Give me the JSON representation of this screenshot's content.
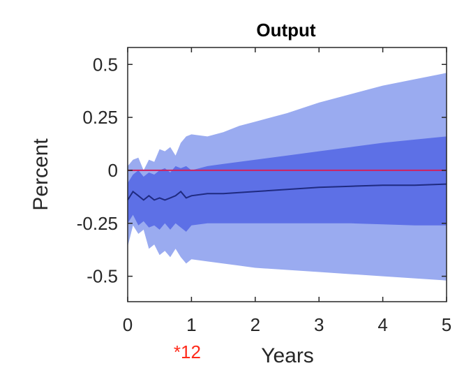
{
  "chart_data": {
    "type": "area",
    "title": "Output",
    "xlabel": "Years",
    "ylabel": "Percent",
    "xlim": [
      0,
      5
    ],
    "ylim": [
      -0.62,
      0.58
    ],
    "x_ticks": [
      "0",
      "1",
      "2",
      "3",
      "4",
      "5"
    ],
    "y_ticks": [
      "0.5",
      "0.25",
      "0",
      "-0.25",
      "-0.5"
    ],
    "x_tick_values": [
      0,
      1,
      2,
      3,
      4,
      5
    ],
    "y_tick_values": [
      0.5,
      0.25,
      0,
      -0.25,
      -0.5
    ],
    "grid": false,
    "annotation": {
      "text": "*12",
      "x": 1
    },
    "reference_line": {
      "y": 0
    },
    "x": [
      0,
      0.083,
      0.167,
      0.25,
      0.333,
      0.417,
      0.5,
      0.583,
      0.667,
      0.75,
      0.833,
      0.917,
      1.0,
      1.25,
      1.5,
      1.75,
      2.0,
      2.5,
      3.0,
      3.5,
      4.0,
      4.5,
      5.0
    ],
    "series": [
      {
        "band": "outer",
        "upper": [
          0.02,
          0.05,
          0.06,
          0.0,
          0.05,
          0.04,
          0.1,
          0.09,
          0.11,
          0.07,
          0.13,
          0.16,
          0.17,
          0.16,
          0.18,
          0.21,
          0.23,
          0.27,
          0.32,
          0.36,
          0.4,
          0.43,
          0.46
        ],
        "lower": [
          -0.36,
          -0.26,
          -0.3,
          -0.28,
          -0.37,
          -0.35,
          -0.4,
          -0.38,
          -0.41,
          -0.37,
          -0.41,
          -0.44,
          -0.42,
          -0.43,
          -0.44,
          -0.45,
          -0.46,
          -0.47,
          -0.48,
          -0.49,
          -0.5,
          -0.51,
          -0.52
        ]
      },
      {
        "band": "inner",
        "upper": [
          -0.06,
          -0.02,
          0.0,
          -0.03,
          -0.01,
          -0.02,
          0.0,
          0.01,
          -0.01,
          0.02,
          0.01,
          0.02,
          0.0,
          0.02,
          0.03,
          0.04,
          0.05,
          0.07,
          0.09,
          0.11,
          0.13,
          0.145,
          0.16
        ],
        "lower": [
          -0.25,
          -0.21,
          -0.26,
          -0.24,
          -0.27,
          -0.26,
          -0.28,
          -0.25,
          -0.28,
          -0.25,
          -0.27,
          -0.29,
          -0.26,
          -0.25,
          -0.25,
          -0.25,
          -0.25,
          -0.25,
          -0.25,
          -0.25,
          -0.255,
          -0.26,
          -0.26
        ]
      },
      {
        "band": "median",
        "values": [
          -0.14,
          -0.1,
          -0.12,
          -0.14,
          -0.12,
          -0.14,
          -0.13,
          -0.14,
          -0.13,
          -0.12,
          -0.1,
          -0.13,
          -0.12,
          -0.11,
          -0.11,
          -0.105,
          -0.1,
          -0.09,
          -0.08,
          -0.075,
          -0.07,
          -0.07,
          -0.065
        ]
      }
    ],
    "colors": {
      "outer_band": "#9aabf0",
      "inner_band": "#5d70e6",
      "median_line": "#1f2a80",
      "zero_line": "#d0215f",
      "annotation": "#ff2a1a",
      "axis": "#262626"
    }
  }
}
